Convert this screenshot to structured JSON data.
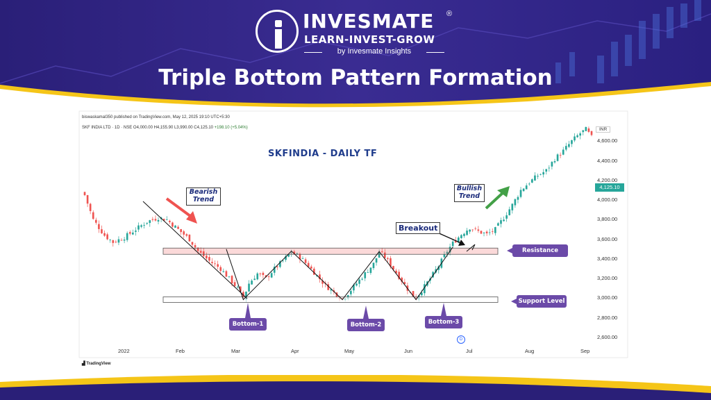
{
  "brand": {
    "name": "INVESMATE",
    "registered": "®",
    "tagline": "LEARN-INVEST-GROW",
    "byline": "by Invesmate Insights"
  },
  "page_title": "Triple Bottom Pattern Formation",
  "chart_meta": {
    "publisher": "biswaskamal350 published on TradingView.com, May 12, 2025 19:10 UTC+5:30",
    "symbol_prefix": "SKF INDIA LTD · 1D · NSE  O4,000.00  H4,155.90  L3,990.00  C4,125.10 ",
    "symbol_change": "+198.10 (+5.04%)",
    "tv_label": "TradingView",
    "d_marker": "D",
    "currency": "INR"
  },
  "colors": {
    "header_bg": "#2a1f78",
    "accent_yellow": "#f5c518",
    "up_candle": "#26a69a",
    "down_candle": "#ef5350",
    "annotation_pill": "#6b4aa8",
    "title_blue": "#1f3c8c"
  },
  "chart_data": {
    "type": "candlestick",
    "title": "SKFINDIA - DAILY TF",
    "y_ticks": [
      "4,600.00",
      "4,400.00",
      "4,200.00",
      "4,000.00",
      "3,800.00",
      "3,600.00",
      "3,400.00",
      "3,200.00",
      "3,000.00",
      "2,800.00",
      "2,600.00"
    ],
    "ylim": [
      2500,
      4800
    ],
    "x_ticks": [
      "2022",
      "Feb",
      "Mar",
      "Apr",
      "May",
      "Jun",
      "Jul",
      "Aug",
      "Sep"
    ],
    "last_price": "4,125.10",
    "close_path": [
      {
        "x": 0,
        "y": 4050
      },
      {
        "x": 3,
        "y": 3800
      },
      {
        "x": 7,
        "y": 3640
      },
      {
        "x": 10,
        "y": 3570
      },
      {
        "x": 14,
        "y": 3620
      },
      {
        "x": 18,
        "y": 3700
      },
      {
        "x": 22,
        "y": 3780
      },
      {
        "x": 26,
        "y": 3820
      },
      {
        "x": 29,
        "y": 3800
      },
      {
        "x": 33,
        "y": 3700
      },
      {
        "x": 37,
        "y": 3600
      },
      {
        "x": 40,
        "y": 3480
      },
      {
        "x": 44,
        "y": 3380
      },
      {
        "x": 48,
        "y": 3300
      },
      {
        "x": 51,
        "y": 3200
      },
      {
        "x": 54,
        "y": 3100
      },
      {
        "x": 56,
        "y": 3000
      },
      {
        "x": 58,
        "y": 3150
      },
      {
        "x": 61,
        "y": 3250
      },
      {
        "x": 64,
        "y": 3200
      },
      {
        "x": 67,
        "y": 3300
      },
      {
        "x": 70,
        "y": 3380
      },
      {
        "x": 73,
        "y": 3470
      },
      {
        "x": 76,
        "y": 3420
      },
      {
        "x": 79,
        "y": 3330
      },
      {
        "x": 82,
        "y": 3230
      },
      {
        "x": 85,
        "y": 3130
      },
      {
        "x": 88,
        "y": 3060
      },
      {
        "x": 91,
        "y": 2990
      },
      {
        "x": 93,
        "y": 3050
      },
      {
        "x": 96,
        "y": 3150
      },
      {
        "x": 99,
        "y": 3250
      },
      {
        "x": 102,
        "y": 3350
      },
      {
        "x": 104,
        "y": 3470
      },
      {
        "x": 106,
        "y": 3420
      },
      {
        "x": 109,
        "y": 3300
      },
      {
        "x": 112,
        "y": 3180
      },
      {
        "x": 115,
        "y": 3050
      },
      {
        "x": 117,
        "y": 3000
      },
      {
        "x": 119,
        "y": 3080
      },
      {
        "x": 122,
        "y": 3200
      },
      {
        "x": 125,
        "y": 3330
      },
      {
        "x": 128,
        "y": 3480
      },
      {
        "x": 130,
        "y": 3560
      },
      {
        "x": 133,
        "y": 3650
      },
      {
        "x": 136,
        "y": 3720
      },
      {
        "x": 139,
        "y": 3680
      },
      {
        "x": 142,
        "y": 3650
      },
      {
        "x": 145,
        "y": 3700
      },
      {
        "x": 148,
        "y": 3820
      },
      {
        "x": 151,
        "y": 3950
      },
      {
        "x": 154,
        "y": 4100
      },
      {
        "x": 157,
        "y": 4180
      },
      {
        "x": 160,
        "y": 4250
      },
      {
        "x": 163,
        "y": 4300
      },
      {
        "x": 166,
        "y": 4420
      },
      {
        "x": 169,
        "y": 4500
      },
      {
        "x": 172,
        "y": 4600
      },
      {
        "x": 175,
        "y": 4680
      },
      {
        "x": 177,
        "y": 4720
      },
      {
        "x": 179,
        "y": 4640
      }
    ],
    "x_count": 180,
    "pattern_lines": {
      "resistance_level": 3475,
      "support_level": 2985,
      "bottoms": [
        "Bottom-1",
        "Bottom-2",
        "Bottom-3"
      ]
    },
    "annotations": {
      "bearish": "Bearish\nTrend",
      "bullish": "Bullish\nTrend",
      "breakout": "Breakout",
      "resistance": "Resistance Level",
      "support": "Support Level",
      "bottom1": "Bottom-1",
      "bottom2": "Bottom-2",
      "bottom3": "Bottom-3"
    }
  }
}
